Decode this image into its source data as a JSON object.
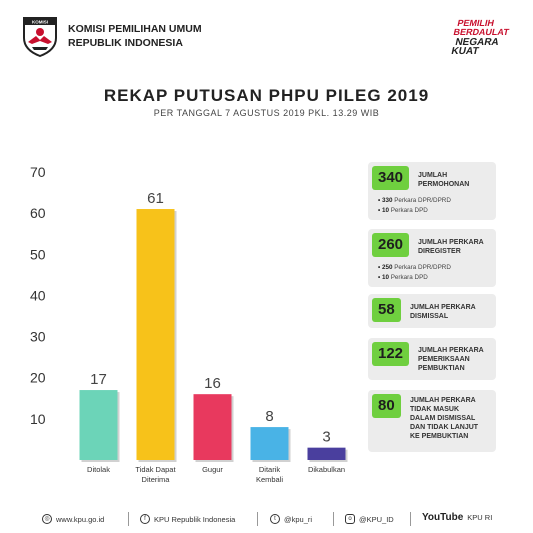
{
  "header": {
    "org_line1": "KOMISI PEMILIHAN UMUM",
    "org_line2": "REPUBLIK INDONESIA",
    "logo_text": "KOMISI",
    "logo_text_bottom": "PEMILIHAN UMUM",
    "slogan_line1": "PEMILIH",
    "slogan_line2": "BERDAULAT",
    "slogan_line3": "NEGARA",
    "slogan_line4": "KUAT"
  },
  "title": "REKAP PUTUSAN PHPU PILEG 2019",
  "subtitle": "PER TANGGAL 7 AGUSTUS 2019 PKL. 13.29 WIB",
  "chart_data": {
    "type": "bar",
    "categories": [
      [
        "Ditolak"
      ],
      [
        "Tidak Dapat",
        "Diterima"
      ],
      [
        "Gugur"
      ],
      [
        "Ditarik",
        "Kembali"
      ],
      [
        "Dikabulkan"
      ]
    ],
    "values": [
      17,
      61,
      16,
      8,
      3
    ],
    "colors": [
      "#6cd4b8",
      "#f7c21a",
      "#e8395e",
      "#49b3e6",
      "#4a3f9e"
    ],
    "yticks": [
      10,
      20,
      30,
      40,
      50,
      60,
      70
    ],
    "ylim": [
      0,
      70
    ],
    "grid": false
  },
  "stats": [
    {
      "num": "340",
      "label": [
        "JUMLAH",
        "PERMOHONAN"
      ],
      "subs": [
        {
          "n": "330",
          "t": " Perkara DPR/DPRD"
        },
        {
          "n": "10",
          "t": " Perkara DPD"
        }
      ]
    },
    {
      "num": "260",
      "label": [
        "JUMLAH PERKARA",
        "DIREGISTER"
      ],
      "subs": [
        {
          "n": "250",
          "t": " Perkara DPR/DPRD"
        },
        {
          "n": "10",
          "t": " Perkara DPD"
        }
      ]
    },
    {
      "num": "58",
      "label": [
        "JUMLAH PERKARA",
        "DISMISSAL"
      ],
      "subs": []
    },
    {
      "num": "122",
      "label": [
        "JUMLAH PERKARA",
        "PEMERIKSAAN",
        "PEMBUKTIAN"
      ],
      "subs": []
    },
    {
      "num": "80",
      "label": [
        "JUMLAH PERKARA",
        "TIDAK MASUK",
        "DALAM DISMISSAL",
        "DAN TIDAK LANJUT",
        "KE PEMBUKTIAN"
      ],
      "subs": []
    }
  ],
  "footer": {
    "website": "www.kpu.go.id",
    "facebook": "KPU Republik Indonesia",
    "twitter": "@kpu_ri",
    "instagram": "@KPU_ID",
    "youtube_brand": "YouTube",
    "youtube": "KPU RI"
  },
  "colors": {
    "accent_green": "#6fcf3f",
    "stat_bg": "#ececec"
  }
}
